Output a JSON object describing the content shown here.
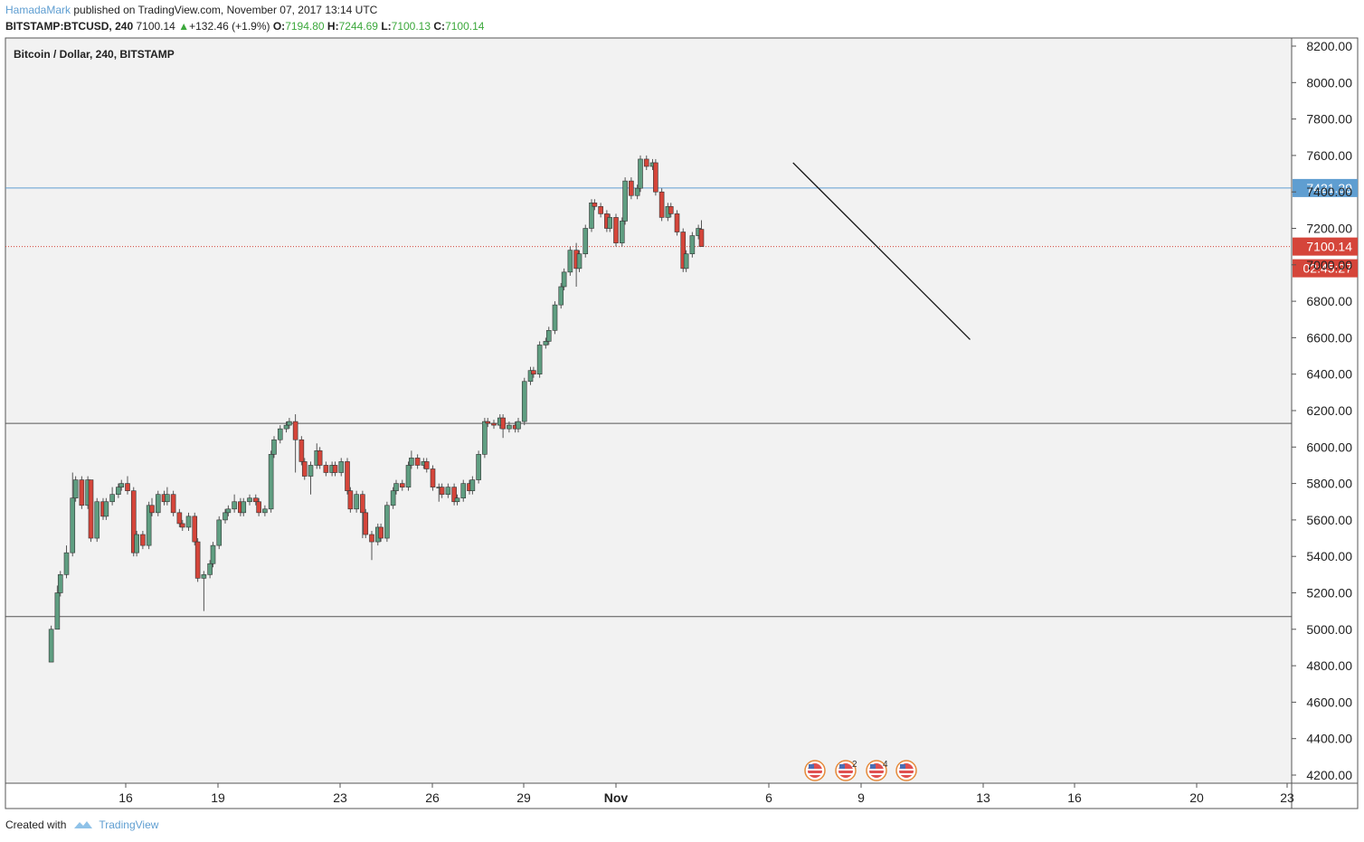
{
  "header": {
    "author": "HamadaMark",
    "published_text": " published on TradingView.com, November 07, 2017 13:14 UTC",
    "symbol": "BITSTAMP:BTCUSD, 240",
    "last": "7100.14",
    "change": "+132.46 (+1.9%)",
    "o_label": "O:",
    "o_value": "7194.80",
    "h_label": "H:",
    "h_value": "7244.69",
    "l_label": "L:",
    "l_value": "7100.13",
    "c_label": "C:",
    "c_value": "7100.14"
  },
  "footer": {
    "created_with": "Created with",
    "brand": "TradingView"
  },
  "colors": {
    "up": "#539777",
    "down": "#d5453a",
    "up_body": "#5f9e81",
    "price_line_blue": "#5f9ed1",
    "price_badge_red": "#d5453a",
    "background": "#f2f2f2"
  },
  "chart_data": {
    "type": "candlestick",
    "title": "Bitcoin / Dollar, 240, BITSTAMP",
    "y_ticks": [
      "8200.00",
      "8000.00",
      "7800.00",
      "7600.00",
      "7400.00",
      "7200.00",
      "7000.00",
      "6800.00",
      "6600.00",
      "6400.00",
      "6200.00",
      "6000.00",
      "5800.00",
      "5600.00",
      "5400.00",
      "5200.00",
      "5000.00",
      "4800.00",
      "4600.00",
      "4400.00",
      "4200.00"
    ],
    "y_tick_values": [
      8200,
      8000,
      7800,
      7600,
      7400,
      7200,
      7000,
      6800,
      6600,
      6400,
      6200,
      6000,
      5800,
      5600,
      5400,
      5200,
      5000,
      4800,
      4600,
      4400,
      4200
    ],
    "x_ticks": [
      "16",
      "19",
      "23",
      "26",
      "29",
      "Nov",
      "6",
      "9",
      "13",
      "16",
      "20",
      "23"
    ],
    "ylim": [
      4200,
      8200
    ],
    "horizontal_lines": [
      {
        "value": 7421.39,
        "label": "7421.39",
        "color": "#5f9ed1"
      },
      {
        "value": 6130,
        "label": "",
        "color": "#555555"
      },
      {
        "value": 5070,
        "label": "",
        "color": "#555555"
      }
    ],
    "current_price": {
      "value": 7100.14,
      "label": "7100.14",
      "countdown": "02:45:27"
    },
    "trendline": {
      "from": [
        5.8,
        7560
      ],
      "to": [
        11.6,
        6590
      ],
      "x_unit": "days after Nov 1"
    },
    "event_badges": [
      "",
      "2",
      "4",
      ""
    ],
    "candles": [
      [
        -18.5,
        4820,
        5000,
        4820,
        5020
      ],
      [
        -18.3,
        5000,
        5200,
        5000,
        5240
      ],
      [
        -18.2,
        5200,
        5300,
        5180,
        5320
      ],
      [
        -18.0,
        5300,
        5420,
        5280,
        5460
      ],
      [
        -17.8,
        5420,
        5720,
        5400,
        5860
      ],
      [
        -17.7,
        5720,
        5820,
        5700,
        5840
      ],
      [
        -17.5,
        5820,
        5680,
        5660,
        5840
      ],
      [
        -17.3,
        5680,
        5820,
        5660,
        5840
      ],
      [
        -17.2,
        5820,
        5500,
        5480,
        5820
      ],
      [
        -17.0,
        5500,
        5700,
        5480,
        5720
      ],
      [
        -16.8,
        5700,
        5620,
        5600,
        5720
      ],
      [
        -16.7,
        5620,
        5700,
        5600,
        5720
      ],
      [
        -16.5,
        5700,
        5740,
        5680,
        5780
      ],
      [
        -16.3,
        5740,
        5780,
        5720,
        5800
      ],
      [
        -16.2,
        5780,
        5800,
        5760,
        5820
      ],
      [
        -16.0,
        5800,
        5760,
        5740,
        5840
      ],
      [
        -15.8,
        5760,
        5420,
        5400,
        5780
      ],
      [
        -15.7,
        5420,
        5520,
        5400,
        5540
      ],
      [
        -15.5,
        5520,
        5460,
        5440,
        5540
      ],
      [
        -15.3,
        5460,
        5680,
        5440,
        5700
      ],
      [
        -15.2,
        5680,
        5640,
        5620,
        5720
      ],
      [
        -15.0,
        5640,
        5740,
        5620,
        5760
      ],
      [
        -14.8,
        5740,
        5700,
        5680,
        5760
      ],
      [
        -14.7,
        5700,
        5740,
        5680,
        5780
      ],
      [
        -14.5,
        5740,
        5640,
        5620,
        5760
      ],
      [
        -14.3,
        5640,
        5580,
        5560,
        5660
      ],
      [
        -14.2,
        5580,
        5560,
        5540,
        5600
      ],
      [
        -14.0,
        5560,
        5620,
        5540,
        5640
      ],
      [
        -13.8,
        5620,
        5480,
        5460,
        5640
      ],
      [
        -13.7,
        5480,
        5280,
        5260,
        5500
      ],
      [
        -13.5,
        5280,
        5300,
        5100,
        5320
      ],
      [
        -13.3,
        5300,
        5360,
        5280,
        5380
      ],
      [
        -13.2,
        5360,
        5460,
        5340,
        5480
      ],
      [
        -13.0,
        5460,
        5600,
        5440,
        5620
      ],
      [
        -12.8,
        5600,
        5640,
        5580,
        5660
      ],
      [
        -12.7,
        5640,
        5660,
        5620,
        5680
      ],
      [
        -12.5,
        5660,
        5700,
        5640,
        5740
      ],
      [
        -12.3,
        5700,
        5640,
        5620,
        5720
      ],
      [
        -12.2,
        5640,
        5700,
        5620,
        5720
      ],
      [
        -12.0,
        5700,
        5720,
        5680,
        5740
      ],
      [
        -11.8,
        5720,
        5700,
        5680,
        5740
      ],
      [
        -11.7,
        5700,
        5640,
        5620,
        5720
      ],
      [
        -11.5,
        5640,
        5660,
        5620,
        5680
      ],
      [
        -11.3,
        5660,
        5960,
        5640,
        5980
      ],
      [
        -11.2,
        5960,
        6040,
        5940,
        6060
      ],
      [
        -11.0,
        6040,
        6100,
        6020,
        6120
      ],
      [
        -10.8,
        6100,
        6120,
        6080,
        6140
      ],
      [
        -10.7,
        6120,
        6140,
        6100,
        6160
      ],
      [
        -10.5,
        6140,
        6040,
        5860,
        6180
      ],
      [
        -10.3,
        6040,
        5920,
        5900,
        6060
      ],
      [
        -10.2,
        5920,
        5840,
        5820,
        5940
      ],
      [
        -10.0,
        5840,
        5900,
        5740,
        5920
      ],
      [
        -9.8,
        5900,
        5980,
        5880,
        6020
      ],
      [
        -9.7,
        5980,
        5900,
        5880,
        6000
      ],
      [
        -9.5,
        5900,
        5860,
        5840,
        5920
      ],
      [
        -9.3,
        5860,
        5900,
        5840,
        5920
      ],
      [
        -9.2,
        5900,
        5860,
        5840,
        5920
      ],
      [
        -9.0,
        5860,
        5920,
        5840,
        5940
      ],
      [
        -8.8,
        5920,
        5760,
        5740,
        5940
      ],
      [
        -8.7,
        5760,
        5660,
        5640,
        5780
      ],
      [
        -8.5,
        5660,
        5740,
        5640,
        5760
      ],
      [
        -8.3,
        5740,
        5640,
        5500,
        5760
      ],
      [
        -8.2,
        5640,
        5520,
        5500,
        5660
      ],
      [
        -8.0,
        5520,
        5480,
        5380,
        5540
      ],
      [
        -7.8,
        5480,
        5560,
        5460,
        5580
      ],
      [
        -7.7,
        5560,
        5500,
        5480,
        5580
      ],
      [
        -7.5,
        5500,
        5680,
        5480,
        5700
      ],
      [
        -7.3,
        5680,
        5760,
        5660,
        5780
      ],
      [
        -7.2,
        5760,
        5800,
        5740,
        5820
      ],
      [
        -7.0,
        5800,
        5780,
        5760,
        5820
      ],
      [
        -6.8,
        5780,
        5900,
        5760,
        5920
      ],
      [
        -6.7,
        5900,
        5940,
        5880,
        5980
      ],
      [
        -6.5,
        5940,
        5900,
        5880,
        5960
      ],
      [
        -6.3,
        5900,
        5920,
        5880,
        5940
      ],
      [
        -6.2,
        5920,
        5880,
        5860,
        5940
      ],
      [
        -6.0,
        5880,
        5780,
        5760,
        5900
      ],
      [
        -5.8,
        5780,
        5780,
        5700,
        5800
      ],
      [
        -5.7,
        5780,
        5740,
        5720,
        5800
      ],
      [
        -5.5,
        5740,
        5780,
        5720,
        5800
      ],
      [
        -5.3,
        5780,
        5700,
        5680,
        5800
      ],
      [
        -5.2,
        5700,
        5720,
        5680,
        5740
      ],
      [
        -5.0,
        5720,
        5800,
        5700,
        5820
      ],
      [
        -4.8,
        5800,
        5760,
        5740,
        5820
      ],
      [
        -4.7,
        5760,
        5820,
        5740,
        5840
      ],
      [
        -4.5,
        5820,
        5960,
        5800,
        5980
      ],
      [
        -4.3,
        5960,
        6140,
        5940,
        6160
      ],
      [
        -4.2,
        6140,
        6130,
        6110,
        6160
      ],
      [
        -4.0,
        6130,
        6120,
        6100,
        6150
      ],
      [
        -3.8,
        6120,
        6160,
        6100,
        6180
      ],
      [
        -3.7,
        6160,
        6100,
        6050,
        6180
      ],
      [
        -3.5,
        6100,
        6120,
        6080,
        6140
      ],
      [
        -3.3,
        6120,
        6100,
        6080,
        6140
      ],
      [
        -3.2,
        6100,
        6140,
        6080,
        6160
      ],
      [
        -3.0,
        6140,
        6360,
        6120,
        6380
      ],
      [
        -2.8,
        6360,
        6420,
        6340,
        6440
      ],
      [
        -2.7,
        6420,
        6400,
        6380,
        6440
      ],
      [
        -2.5,
        6400,
        6560,
        6380,
        6580
      ],
      [
        -2.3,
        6560,
        6580,
        6540,
        6600
      ],
      [
        -2.2,
        6580,
        6640,
        6560,
        6660
      ],
      [
        -2.0,
        6640,
        6780,
        6620,
        6800
      ],
      [
        -1.8,
        6780,
        6880,
        6760,
        6900
      ],
      [
        -1.7,
        6880,
        6960,
        6860,
        6980
      ],
      [
        -1.5,
        6960,
        7080,
        6940,
        7100
      ],
      [
        -1.3,
        7080,
        6980,
        6880,
        7120
      ],
      [
        -1.2,
        6980,
        7060,
        6960,
        7080
      ],
      [
        -1.0,
        7060,
        7200,
        7040,
        7220
      ],
      [
        -0.8,
        7200,
        7340,
        7180,
        7360
      ],
      [
        -0.7,
        7340,
        7320,
        7300,
        7360
      ],
      [
        -0.5,
        7320,
        7280,
        7260,
        7340
      ],
      [
        -0.3,
        7280,
        7200,
        7180,
        7300
      ],
      [
        -0.2,
        7200,
        7260,
        7180,
        7280
      ],
      [
        0.0,
        7260,
        7120,
        7100,
        7280
      ],
      [
        0.2,
        7120,
        7240,
        7100,
        7260
      ],
      [
        0.3,
        7240,
        7460,
        7220,
        7480
      ],
      [
        0.5,
        7460,
        7380,
        7360,
        7480
      ],
      [
        0.7,
        7380,
        7420,
        7360,
        7440
      ],
      [
        0.8,
        7420,
        7580,
        7400,
        7600
      ],
      [
        1.0,
        7580,
        7540,
        7520,
        7600
      ],
      [
        1.2,
        7540,
        7560,
        7520,
        7580
      ],
      [
        1.3,
        7560,
        7400,
        7380,
        7580
      ],
      [
        1.5,
        7400,
        7260,
        7240,
        7420
      ],
      [
        1.7,
        7260,
        7320,
        7240,
        7340
      ],
      [
        1.8,
        7320,
        7280,
        7260,
        7340
      ],
      [
        2.0,
        7280,
        7180,
        7160,
        7300
      ],
      [
        2.2,
        7180,
        6980,
        6960,
        7200
      ],
      [
        2.3,
        6980,
        7060,
        6960,
        7080
      ],
      [
        2.5,
        7060,
        7160,
        7040,
        7180
      ],
      [
        2.7,
        7160,
        7200,
        7140,
        7220
      ],
      [
        2.8,
        7194.8,
        7100.14,
        7100.13,
        7244.69
      ]
    ],
    "candle_fields": [
      "x_days_after_nov1",
      "open",
      "close",
      "low",
      "high"
    ]
  }
}
